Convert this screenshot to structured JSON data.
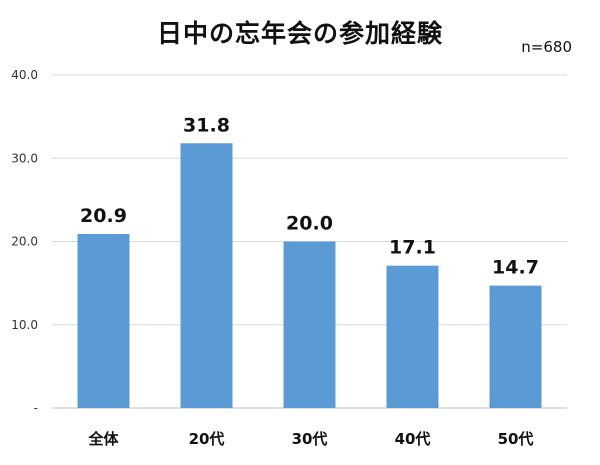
{
  "title": "日中の忘年会の参加経験",
  "note": "n=680",
  "colors": {
    "bar": "#5b9bd5",
    "grid": "#d9d9d9",
    "axis": "#bfbfbf"
  },
  "chart_data": {
    "type": "bar",
    "title": "日中の忘年会の参加経験",
    "categories": [
      "全体",
      "20代",
      "30代",
      "40代",
      "50代"
    ],
    "values": [
      20.9,
      31.8,
      20.0,
      17.1,
      14.7
    ],
    "value_labels": [
      "20.9",
      "31.8",
      "20.0",
      "17.1",
      "14.7"
    ],
    "ylim": [
      0,
      40
    ],
    "y_ticks": [
      0,
      10,
      20,
      30,
      40
    ],
    "y_tick_labels": [
      "-",
      "10.0",
      "20.0",
      "30.0",
      "40.0"
    ],
    "grid": true,
    "xlabel": "",
    "ylabel": ""
  }
}
